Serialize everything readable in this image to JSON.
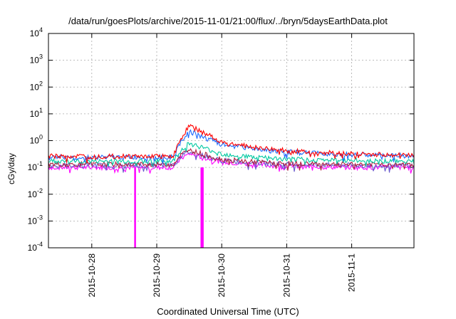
{
  "chart_data": {
    "type": "line",
    "title": "/data/run/goesPlots/archive/2015-11-01/21:00/flux/../bryn/5daysEarthData.plot",
    "xlabel": "Coordinated Universal Time (UTC)",
    "ylabel": "cGy/day",
    "yscale": "log",
    "ylim": [
      0.0001,
      10000
    ],
    "xlim_days": [
      "2015-10-27T08:00",
      "2015-11-01T23:00"
    ],
    "grid": true,
    "x_ticks": [
      "2015-10-28",
      "2015-10-29",
      "2015-10-30",
      "2015-10-31",
      "2015-11-1"
    ],
    "y_ticks": [
      {
        "base": "10",
        "exp": "-4",
        "value": 0.0001
      },
      {
        "base": "10",
        "exp": "-3",
        "value": 0.001
      },
      {
        "base": "10",
        "exp": "-2",
        "value": 0.01
      },
      {
        "base": "10",
        "exp": "-1",
        "value": 0.1
      },
      {
        "base": "10",
        "exp": "0",
        "value": 1
      },
      {
        "base": "10",
        "exp": "1",
        "value": 10
      },
      {
        "base": "10",
        "exp": "2",
        "value": 100
      },
      {
        "base": "10",
        "exp": "3",
        "value": 1000
      },
      {
        "base": "10",
        "exp": "4",
        "value": 10000
      }
    ],
    "x": [
      "2015-10-27T08:00",
      "2015-10-28T00:00",
      "2015-10-29T00:00",
      "2015-10-29T06:00",
      "2015-10-29T09:00",
      "2015-10-29T12:00",
      "2015-10-30T00:00",
      "2015-10-30T12:00",
      "2015-10-31T00:00",
      "2015-11-01T00:00",
      "2015-11-01T23:00"
    ],
    "series": [
      {
        "color": "#ff0000",
        "values": [
          0.26,
          0.26,
          0.26,
          0.26,
          1.2,
          3.6,
          0.9,
          0.55,
          0.42,
          0.32,
          0.28
        ]
      },
      {
        "color": "#1e6bff",
        "values": [
          0.24,
          0.24,
          0.24,
          0.24,
          0.9,
          2.2,
          0.7,
          0.5,
          0.38,
          0.3,
          0.27
        ]
      },
      {
        "color": "#00c8a0",
        "values": [
          0.17,
          0.17,
          0.17,
          0.17,
          0.45,
          0.8,
          0.32,
          0.24,
          0.2,
          0.18,
          0.17
        ]
      },
      {
        "color": "#b02040",
        "values": [
          0.13,
          0.13,
          0.13,
          0.13,
          0.3,
          0.45,
          0.2,
          0.16,
          0.14,
          0.13,
          0.13
        ]
      },
      {
        "color": "#6a5acd",
        "values": [
          0.12,
          0.12,
          0.12,
          0.12,
          0.27,
          0.38,
          0.18,
          0.15,
          0.13,
          0.12,
          0.12
        ]
      },
      {
        "color": "#ff00ff",
        "values": [
          0.1,
          0.1,
          0.1,
          0.1,
          0.22,
          0.32,
          0.16,
          0.13,
          0.11,
          0.1,
          0.1
        ]
      }
    ],
    "dropouts": [
      {
        "x": "2015-10-28T16:00",
        "color": "#ff00ff"
      },
      {
        "x": "2015-10-29T16:30",
        "color": "#ff00ff"
      },
      {
        "x": "2015-10-29T17:00",
        "color": "#ff00ff"
      }
    ]
  }
}
